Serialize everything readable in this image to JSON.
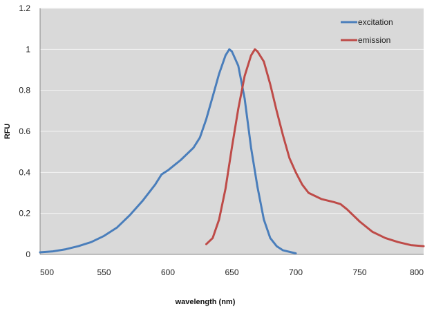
{
  "chart_data": {
    "type": "line",
    "title": "",
    "xlabel": "wavelength (nm)",
    "ylabel": "RFU",
    "xlim": [
      500,
      800
    ],
    "ylim": [
      0,
      1.2
    ],
    "x_ticks": [
      500,
      550,
      600,
      650,
      700,
      750,
      800
    ],
    "y_ticks": [
      0,
      0.2,
      0.4,
      0.6,
      0.8,
      1,
      1.2
    ],
    "grid": true,
    "legend_position": "top-right",
    "plot_background": "#d9d9d9",
    "series": [
      {
        "name": "excitation",
        "color": "#4a7ebb",
        "x": [
          500,
          510,
          520,
          530,
          540,
          550,
          560,
          570,
          580,
          590,
          595,
          600,
          610,
          620,
          625,
          630,
          635,
          640,
          645,
          648,
          650,
          655,
          660,
          665,
          670,
          675,
          680,
          685,
          690,
          700
        ],
        "y": [
          0.01,
          0.015,
          0.025,
          0.04,
          0.06,
          0.09,
          0.13,
          0.19,
          0.26,
          0.34,
          0.39,
          0.41,
          0.46,
          0.52,
          0.57,
          0.66,
          0.77,
          0.88,
          0.97,
          1.0,
          0.99,
          0.92,
          0.76,
          0.52,
          0.33,
          0.17,
          0.08,
          0.04,
          0.02,
          0.005
        ]
      },
      {
        "name": "emission",
        "color": "#be4b48",
        "x": [
          630,
          635,
          640,
          645,
          650,
          655,
          660,
          665,
          668,
          670,
          675,
          680,
          685,
          690,
          695,
          700,
          705,
          710,
          720,
          730,
          735,
          740,
          750,
          760,
          770,
          780,
          790,
          800
        ],
        "y": [
          0.05,
          0.08,
          0.17,
          0.32,
          0.52,
          0.71,
          0.87,
          0.97,
          1.0,
          0.99,
          0.94,
          0.83,
          0.7,
          0.58,
          0.47,
          0.4,
          0.34,
          0.3,
          0.27,
          0.255,
          0.245,
          0.22,
          0.16,
          0.11,
          0.08,
          0.06,
          0.045,
          0.04
        ]
      }
    ]
  }
}
